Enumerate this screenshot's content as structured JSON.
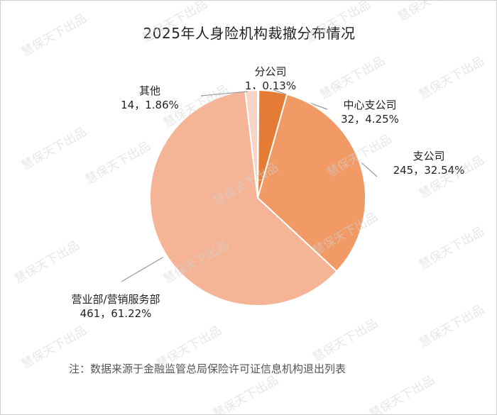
{
  "title": "2025年人身险机构裁撤分布情况",
  "note": "注：数据来源于金融监管总局保险许可证信息机构退出列表",
  "watermark": "慧保天下出品",
  "chart_data": {
    "type": "pie",
    "title": "2025年人身险机构裁撤分布情况",
    "slices": [
      {
        "name": "分公司",
        "value": 1,
        "percent": "0.13%",
        "value_label": "1，0.13%",
        "color": "#c4581c"
      },
      {
        "name": "中心支公司",
        "value": 32,
        "percent": "4.25%",
        "value_label": "32，4.25%",
        "color": "#e57b35"
      },
      {
        "name": "支公司",
        "value": 245,
        "percent": "32.54%",
        "value_label": "245，32.54%",
        "color": "#f19a66"
      },
      {
        "name": "营业部/营销服务部",
        "value": 461,
        "percent": "61.22%",
        "value_label": "461，61.22%",
        "color": "#f5b496"
      },
      {
        "name": "其他",
        "value": 14,
        "percent": "1.86%",
        "value_label": "14，1.86%",
        "color": "#f8d4c6"
      }
    ],
    "legend": "none"
  }
}
